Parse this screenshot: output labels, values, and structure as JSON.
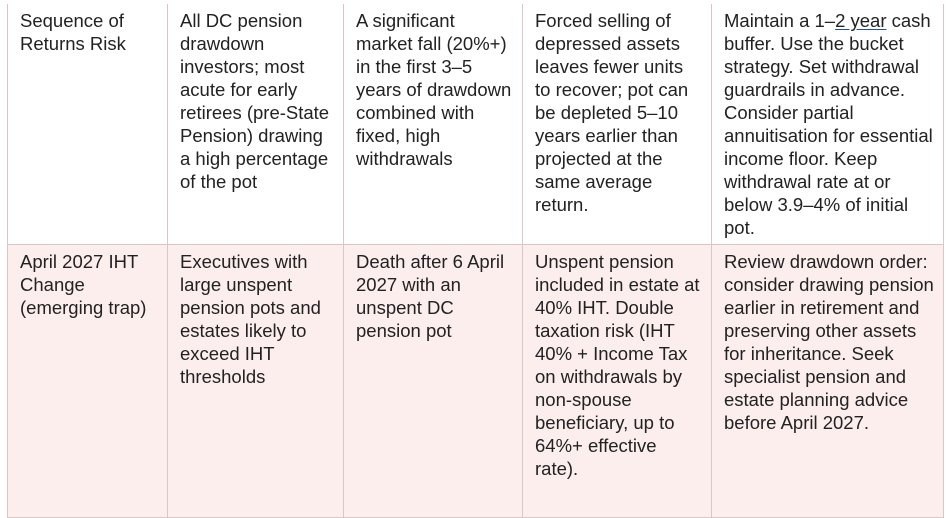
{
  "rows": [
    {
      "risk": "Sequence of Returns Risk",
      "who": "All DC pension drawdown investors; most acute for early retirees (pre-State Pension) drawing a high percentage of the pot",
      "trigger": "A significant market fall (20%+) in the first 3–5 years of drawdown combined with fixed, high withdrawals",
      "impact": "Forced selling of depressed assets leaves fewer units to recover; pot can be depleted 5–10 years earlier than projected at the same average return.",
      "mitigation_pre": "Maintain a 1–",
      "mitigation_link": "2 year",
      "mitigation_post": " cash buffer. Use the bucket strategy. Set withdrawal guardrails in advance. Consider partial annuitisation for essential income floor. Keep withdrawal rate at or below 3.9–4% of initial pot."
    },
    {
      "risk": "April 2027 IHT Change (emerging trap)",
      "who": "Executives with large unspent pension pots and estates likely to exceed IHT thresholds",
      "trigger": "Death after 6 April 2027 with an unspent DC pension pot",
      "impact": "Unspent pension included in estate at 40% IHT. Double taxation risk (IHT 40% + Income Tax on withdrawals by non-spouse beneficiary, up to 64%+ effective rate).",
      "mitigation": "Review drawdown order: consider drawing pension earlier in retirement and preserving other assets for inheritance. Seek specialist pension and estate planning advice before April 2027."
    }
  ]
}
